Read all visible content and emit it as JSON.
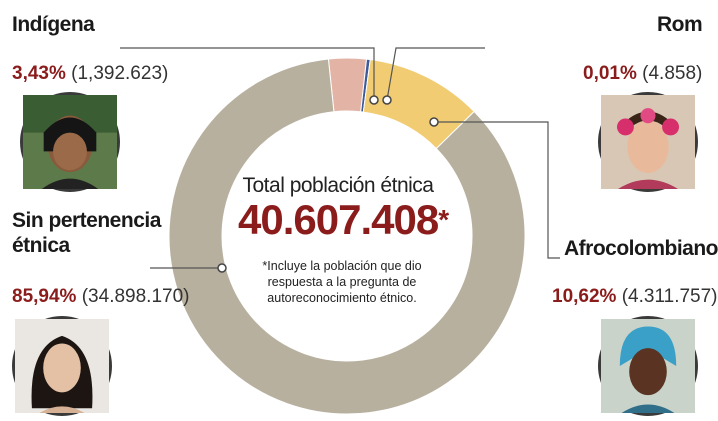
{
  "chart_data": {
    "type": "pie",
    "title": "Total población étnica",
    "total": "40.607.408",
    "total_marker": "*",
    "footnote": "*Incluye la población que dio respuesta a la pregunta de autoreconocimiento étnico.",
    "slices": [
      {
        "name": "Indígena",
        "percent": 3.43,
        "percent_label": "3,43%",
        "count_label": "(1,392.623)",
        "color": "#e3b4a6"
      },
      {
        "name": "Rom",
        "percent": 0.01,
        "percent_label": "0,01%",
        "count_label": "(4.858)",
        "color": "#3d5a99"
      },
      {
        "name": "Afrocolombiano",
        "percent": 10.62,
        "percent_label": "10,62%",
        "count_label": "(4.311.757)",
        "color": "#f1cc72"
      },
      {
        "name": "Sin pertenencia étnica",
        "name_line1": "Sin pertenencia",
        "name_line2": "étnica",
        "percent": 85.94,
        "percent_label": "85,94%",
        "count_label": "(34.898.170)",
        "color": "#b8b09f"
      }
    ]
  },
  "icons": [
    "indigena-portrait-icon",
    "rom-portrait-icon",
    "sin-pertenencia-portrait-icon",
    "afrocolombiano-portrait-icon"
  ],
  "colors": {
    "accent": "#8b1c1c",
    "leader": "#555555"
  }
}
